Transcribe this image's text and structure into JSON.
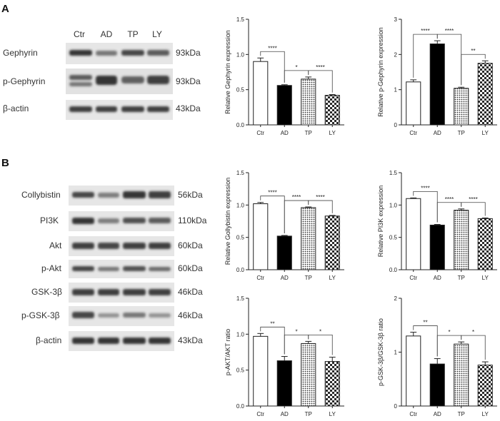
{
  "panels": {
    "A": "A",
    "B": "B"
  },
  "blot_A": {
    "lanes": [
      "Ctr",
      "AD",
      "TP",
      "LY"
    ],
    "rows": [
      {
        "name": "Gephyrin",
        "size": "93kDa"
      },
      {
        "name": "p-Gephyrin",
        "size": "93kDa"
      },
      {
        "name": "β-actin",
        "size": "43kDa"
      }
    ]
  },
  "blot_B": {
    "rows": [
      {
        "name": "Collybistin",
        "size": "56kDa"
      },
      {
        "name": "PI3K",
        "size": "110kDa"
      },
      {
        "name": "Akt",
        "size": "60kDa"
      },
      {
        "name": "p-Akt",
        "size": "60kDa"
      },
      {
        "name": "GSK-3β",
        "size": "46kDa"
      },
      {
        "name": "p-GSK-3β",
        "size": "46kDa"
      },
      {
        "name": "β-actin",
        "size": "43kDa"
      }
    ]
  },
  "chart_data": [
    {
      "type": "bar",
      "categories": [
        "Ctr",
        "AD",
        "TP",
        "LY"
      ],
      "values": [
        0.9,
        0.56,
        0.65,
        0.42
      ],
      "errors": [
        0.05,
        0.01,
        0.03,
        0.01
      ],
      "ylabel": "Relative Gephyrin expression",
      "ylim": [
        0,
        1.5
      ],
      "yticks": [
        "0.0",
        "0.5",
        "1.0",
        "1.5"
      ],
      "sig": [
        {
          "from": 0,
          "to": 1,
          "label": "****"
        },
        {
          "from": 1,
          "to": 2,
          "label": "*"
        },
        {
          "from": 2,
          "to": 3,
          "label": "****"
        }
      ]
    },
    {
      "type": "bar",
      "categories": [
        "Ctr",
        "AD",
        "TP",
        "LY"
      ],
      "values": [
        1.22,
        2.3,
        1.04,
        1.75
      ],
      "errors": [
        0.06,
        0.09,
        0.03,
        0.07
      ],
      "ylabel": "Relative p-Gephyrin expression",
      "ylim": [
        0,
        3
      ],
      "yticks": [
        "0",
        "1",
        "2",
        "3"
      ],
      "sig": [
        {
          "from": 0,
          "to": 1,
          "label": "****"
        },
        {
          "from": 1,
          "to": 2,
          "label": "****"
        },
        {
          "from": 2,
          "to": 3,
          "label": "**"
        }
      ]
    },
    {
      "type": "bar",
      "categories": [
        "Ctr",
        "AD",
        "TP",
        "LY"
      ],
      "values": [
        1.02,
        0.52,
        0.96,
        0.83
      ],
      "errors": [
        0.02,
        0.01,
        0.01,
        0.01
      ],
      "ylabel": "Relative Gollybistin expression",
      "ylim": [
        0,
        1.5
      ],
      "yticks": [
        "0.0",
        "0.5",
        "1.0",
        "1.5"
      ],
      "sig": [
        {
          "from": 0,
          "to": 1,
          "label": "****"
        },
        {
          "from": 1,
          "to": 2,
          "label": "****"
        },
        {
          "from": 2,
          "to": 3,
          "label": "****"
        }
      ]
    },
    {
      "type": "bar",
      "categories": [
        "Ctr",
        "AD",
        "TP",
        "LY"
      ],
      "values": [
        1.1,
        0.69,
        0.92,
        0.79
      ],
      "errors": [
        0.01,
        0.01,
        0.02,
        0.01
      ],
      "ylabel": "Relative PI3K expression",
      "ylim": [
        0,
        1.5
      ],
      "yticks": [
        "0.0",
        "0.5",
        "1.0",
        "1.5"
      ],
      "sig": [
        {
          "from": 0,
          "to": 1,
          "label": "****"
        },
        {
          "from": 1,
          "to": 2,
          "label": "****"
        },
        {
          "from": 2,
          "to": 3,
          "label": "****"
        }
      ]
    },
    {
      "type": "bar",
      "categories": [
        "Ctr",
        "AD",
        "TP",
        "LY"
      ],
      "values": [
        0.97,
        0.63,
        0.87,
        0.62
      ],
      "errors": [
        0.04,
        0.06,
        0.03,
        0.06
      ],
      "ylabel": "p-AKT/AKT ratio",
      "ylim": [
        0,
        1.5
      ],
      "yticks": [
        "0.0",
        "0.5",
        "1.0",
        "1.5"
      ],
      "sig": [
        {
          "from": 0,
          "to": 1,
          "label": "**"
        },
        {
          "from": 1,
          "to": 2,
          "label": "*"
        },
        {
          "from": 2,
          "to": 3,
          "label": "*"
        }
      ]
    },
    {
      "type": "bar",
      "categories": [
        "Ctr",
        "AD",
        "TP",
        "LY"
      ],
      "values": [
        1.3,
        0.78,
        1.15,
        0.76
      ],
      "errors": [
        0.07,
        0.1,
        0.04,
        0.06
      ],
      "ylabel": "p-GSK-3β/GSK-3β ratio",
      "ylim": [
        0,
        2
      ],
      "yticks": [
        "0",
        "1",
        "2"
      ],
      "sig": [
        {
          "from": 0,
          "to": 1,
          "label": "**"
        },
        {
          "from": 1,
          "to": 2,
          "label": "*"
        },
        {
          "from": 2,
          "to": 3,
          "label": "*"
        }
      ]
    }
  ]
}
